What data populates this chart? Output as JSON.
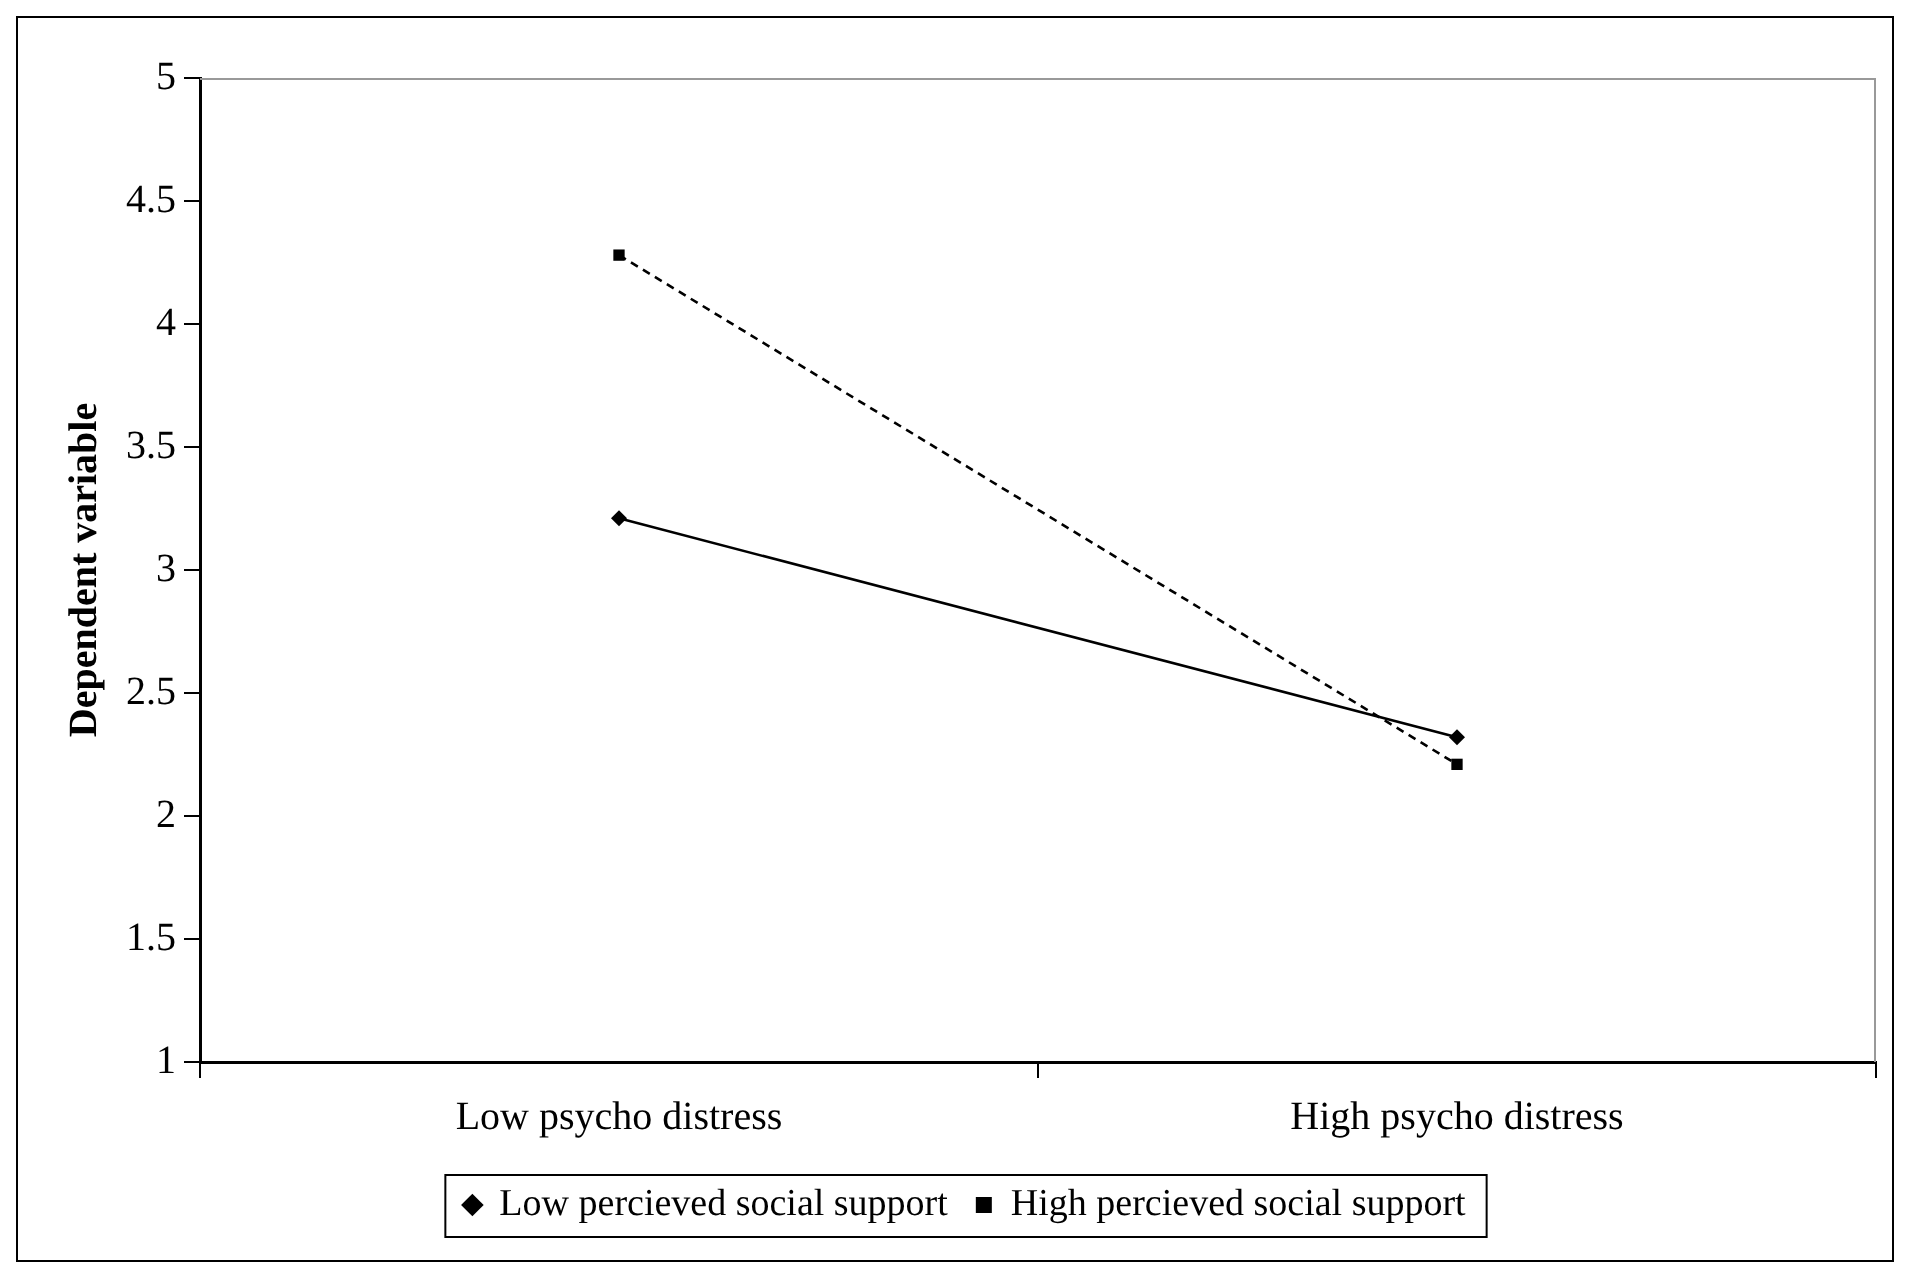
{
  "chart_data": {
    "type": "line",
    "ylabel": "Dependent variable",
    "categories": [
      "Low psycho distress",
      "High psycho distress"
    ],
    "series": [
      {
        "name": "Low percieved social support",
        "color": "#000000",
        "values": [
          3.21,
          2.32
        ],
        "marker": "diamond",
        "line_style": "solid"
      },
      {
        "name": "High percieved social support",
        "color": "#000000",
        "values": [
          4.28,
          2.21
        ],
        "marker": "square",
        "line_style": "dashed"
      }
    ],
    "ylim": [
      1,
      5
    ],
    "yticks": [
      1,
      1.5,
      2,
      2.5,
      3,
      3.5,
      4,
      4.5,
      5
    ],
    "grid": false,
    "legend": "bottom"
  }
}
